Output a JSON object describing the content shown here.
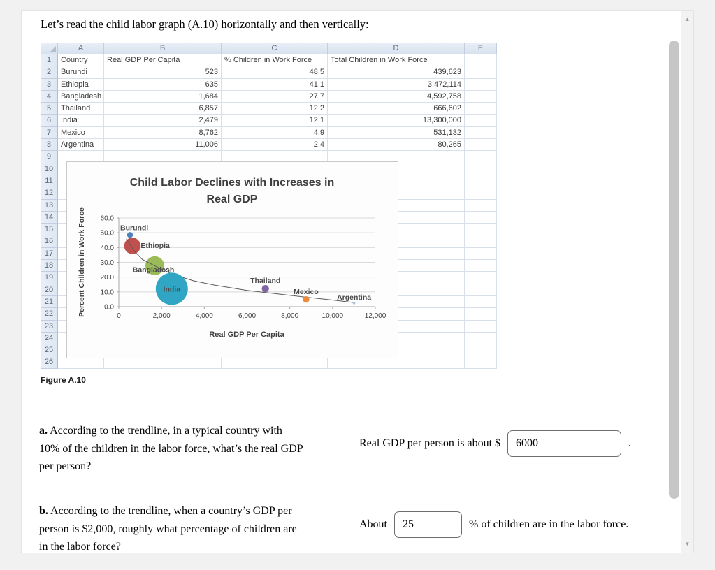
{
  "page": {
    "title": "Let’s read the child labor graph (A.10) horizontally and then vertically:"
  },
  "spreadsheet": {
    "column_letters": [
      "A",
      "B",
      "C",
      "D",
      "E"
    ],
    "header_row": [
      "Country",
      "Real GDP Per Capita",
      "% Children in Work Force",
      "Total Children in Work Force"
    ],
    "data_rows": [
      [
        "Burundi",
        "523",
        "48.5",
        "439,623"
      ],
      [
        "Ethiopia",
        "635",
        "41.1",
        "3,472,114"
      ],
      [
        "Bangladesh",
        "1,684",
        "27.7",
        "4,592,758"
      ],
      [
        "Thailand",
        "6,857",
        "12.2",
        "666,602"
      ],
      [
        "India",
        "2,479",
        "12.1",
        "13,300,000"
      ],
      [
        "Mexico",
        "8,762",
        "4.9",
        "531,132"
      ],
      [
        "Argentina",
        "11,006",
        "2.4",
        "80,265"
      ]
    ],
    "row_count": 26
  },
  "chart_data": {
    "type": "scatter",
    "subtype": "bubble",
    "title": "Child Labor Declines with Increases in Real GDP",
    "title_lines": [
      "Child Labor Declines with Increases in",
      "Real GDP"
    ],
    "xlabel": "Real GDP Per Capita",
    "ylabel": "Percent Children in Work Force",
    "xlim": [
      0,
      12000
    ],
    "ylim": [
      0,
      60
    ],
    "grid": true,
    "legend": false,
    "x_tick_values": [
      0,
      2000,
      4000,
      6000,
      8000,
      10000,
      12000
    ],
    "x_tick_labels": [
      "0",
      "2,000",
      "4,000",
      "6,000",
      "8,000",
      "10,000",
      "12,000"
    ],
    "y_tick_values": [
      0,
      10,
      20,
      30,
      40,
      50,
      60
    ],
    "y_tick_labels": [
      "0.0",
      "10.0",
      "20.0",
      "30.0",
      "40.0",
      "50.0",
      "60.0"
    ],
    "points": [
      {
        "name": "Burundi",
        "x": 523,
        "y": 48.5,
        "size": 439623,
        "color": "#4F81BD",
        "label_pos": "above-left"
      },
      {
        "name": "Ethiopia",
        "x": 635,
        "y": 41.1,
        "size": 3472114,
        "color": "#C0504D",
        "label_pos": "right"
      },
      {
        "name": "Bangladesh",
        "x": 1684,
        "y": 27.7,
        "size": 4592758,
        "color": "#9BBB59",
        "label_pos": "below-left"
      },
      {
        "name": "India",
        "x": 2479,
        "y": 12.1,
        "size": 13300000,
        "color": "#31A5C4",
        "label_pos": "center"
      },
      {
        "name": "Thailand",
        "x": 6857,
        "y": 12.2,
        "size": 666602,
        "color": "#8064A2",
        "label_pos": "above"
      },
      {
        "name": "Mexico",
        "x": 8762,
        "y": 4.9,
        "size": 531132,
        "color": "#EE8A3C",
        "label_pos": "above"
      },
      {
        "name": "Argentina",
        "x": 11006,
        "y": 2.4,
        "size": 80265,
        "color": "#A8C3DF",
        "label_pos": "above"
      }
    ],
    "trendline": {
      "type": "power",
      "points": [
        [
          350,
          46
        ],
        [
          700,
          38
        ],
        [
          1100,
          32
        ],
        [
          1700,
          27.5
        ],
        [
          2500,
          22
        ],
        [
          3500,
          17.5
        ],
        [
          4500,
          14.5
        ],
        [
          6000,
          11
        ],
        [
          7500,
          8.5
        ],
        [
          9000,
          6
        ],
        [
          10000,
          4.5
        ],
        [
          11000,
          2.8
        ]
      ]
    }
  },
  "figure": {
    "caption": "Figure A.10"
  },
  "questions": {
    "a": {
      "label": "a.",
      "lines": [
        "According to the trendline, in a typical country with",
        "10% of the children in the labor force, what’s the real GDP",
        "per person?"
      ],
      "answer_prefix": "Real GDP per person is about $",
      "value": "6000",
      "answer_suffix": "."
    },
    "b": {
      "label": "b.",
      "lines": [
        "According to the trendline, when a country’s GDP per",
        "person is $2,000, roughly what percentage of children are",
        "in the labor force?"
      ],
      "answer_prefix": "About",
      "value": "25",
      "answer_suffix": "% of children are in the labor force."
    }
  }
}
